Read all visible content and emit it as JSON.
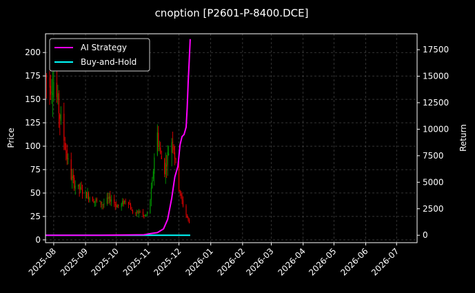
{
  "chart_data": {
    "type": "candlestick-line",
    "title": "cnoption [P2601-P-8400.DCE]",
    "ylabel_left": "Price",
    "ylabel_right": "Return",
    "xlim": [
      "2025-07-24",
      "2026-07-21"
    ],
    "ylim_left": [
      -3,
      220
    ],
    "ylim_right": [
      -700,
      19000
    ],
    "grid": true,
    "legend_position": "top-left",
    "colors": {
      "background": "#000000",
      "up_candle": "#00aa00",
      "down_candle": "#ff0000",
      "ai_strategy": "#ff00ff",
      "buy_and_hold": "#00ffff",
      "grid": "#555555",
      "text": "#ffffff"
    },
    "x_ticks": [
      "2025-08",
      "2025-09",
      "2025-10",
      "2025-11",
      "2025-12",
      "2026-01",
      "2026-02",
      "2026-03",
      "2026-04",
      "2026-05",
      "2026-06",
      "2026-07"
    ],
    "y_ticks_left": [
      0,
      25,
      50,
      75,
      100,
      125,
      150,
      175,
      200
    ],
    "y_ticks_right": [
      0,
      2500,
      5000,
      7500,
      10000,
      12500,
      15000,
      17500
    ],
    "price_envelope": {
      "dates": [
        "2025-07-24",
        "2025-07-28",
        "2025-08-01",
        "2025-08-05",
        "2025-08-09",
        "2025-08-13",
        "2025-08-17",
        "2025-08-21",
        "2025-08-25",
        "2025-08-29",
        "2025-09-02",
        "2025-09-06",
        "2025-09-10",
        "2025-09-14",
        "2025-09-18",
        "2025-09-22",
        "2025-09-26",
        "2025-09-30",
        "2025-10-04",
        "2025-10-08",
        "2025-10-12",
        "2025-10-16",
        "2025-10-20",
        "2025-10-24",
        "2025-10-28",
        "2025-11-01",
        "2025-11-05",
        "2025-11-09",
        "2025-11-13",
        "2025-11-17",
        "2025-11-21",
        "2025-11-25",
        "2025-11-29",
        "2025-12-03",
        "2025-12-07",
        "2025-12-11"
      ],
      "values": [
        175,
        165,
        170,
        145,
        120,
        95,
        70,
        60,
        55,
        52,
        48,
        45,
        42,
        40,
        38,
        42,
        44,
        38,
        35,
        40,
        45,
        30,
        28,
        30,
        25,
        28,
        60,
        120,
        90,
        75,
        95,
        110,
        70,
        45,
        30,
        18
      ]
    },
    "series": [
      {
        "name": "AI Strategy",
        "dates": [
          "2025-07-24",
          "2025-09-15",
          "2025-10-28",
          "2025-11-03",
          "2025-11-10",
          "2025-11-16",
          "2025-11-20",
          "2025-11-24",
          "2025-11-27",
          "2025-11-30",
          "2025-12-02",
          "2025-12-04",
          "2025-12-06",
          "2025-12-08",
          "2025-12-09",
          "2025-12-10",
          "2025-12-11",
          "2025-12-12"
        ],
        "values": [
          0,
          0,
          50,
          150,
          250,
          600,
          1500,
          3500,
          5500,
          6500,
          8500,
          9300,
          9500,
          10200,
          12000,
          14500,
          16500,
          18500
        ]
      },
      {
        "name": "Buy-and-Hold",
        "dates": [
          "2025-07-24",
          "2025-12-12"
        ],
        "values": [
          0,
          0
        ]
      }
    ]
  }
}
